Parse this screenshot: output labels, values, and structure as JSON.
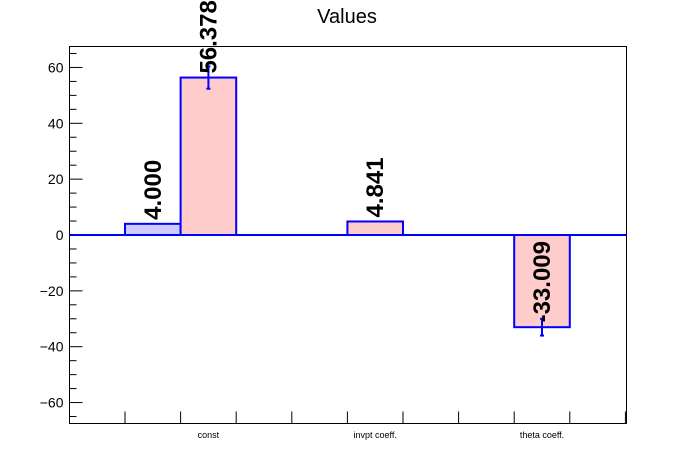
{
  "chart_data": {
    "type": "bar",
    "title": "Values",
    "xlabel": "",
    "ylabel": "",
    "ylim": [
      -67.5,
      67.5
    ],
    "yticks": [
      -60,
      -40,
      -20,
      0,
      20,
      40,
      60
    ],
    "categories": [
      "const",
      "invpt coeff.",
      "theta coeff."
    ],
    "bins": 9,
    "bars": [
      {
        "bin": 0,
        "category": "const",
        "value": 4.0,
        "error": 0,
        "label": "4.000",
        "fill": "#ccccff"
      },
      {
        "bin": 1,
        "category": "const",
        "value": 56.378,
        "error": 4.0,
        "label": "56.378",
        "fill": "#ffcccc"
      },
      {
        "bin": 4,
        "category": "invpt coeff.",
        "value": 4.841,
        "error": 0,
        "label": "4.841",
        "fill": "#ffcccc"
      },
      {
        "bin": 7,
        "category": "theta coeff.",
        "value": -33.009,
        "error": 3.0,
        "label": "-33.009",
        "fill": "#ffcccc"
      }
    ],
    "grid": false,
    "colors": {
      "edge": "#0000ff",
      "axis": "#000000"
    }
  }
}
